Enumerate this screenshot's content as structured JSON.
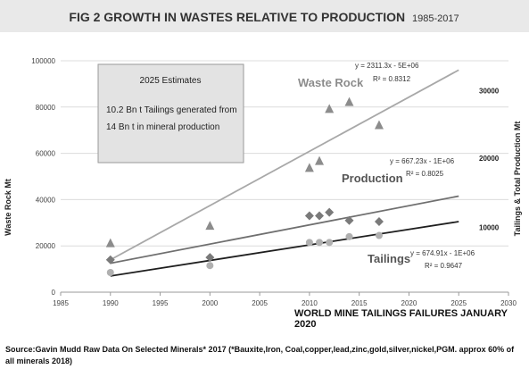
{
  "chart_data": {
    "type": "scatter",
    "title_main": "FIG 2 GROWTH IN WASTES RELATIVE TO PRODUCTION",
    "title_years": "1985-2017",
    "ylabel": "Waste Rock Mt",
    "ylabel_right": "Tailings & Total Production Mt",
    "xlim": [
      1985,
      2030
    ],
    "x_ticks": [
      1985,
      1990,
      1995,
      2000,
      2005,
      2010,
      2015,
      2020,
      2025,
      2030
    ],
    "ylim": [
      0,
      100000
    ],
    "y_ticks": [
      0,
      20000,
      40000,
      60000,
      80000,
      100000
    ],
    "right_ticks": [
      {
        "label": "30000",
        "at": 87000
      },
      {
        "label": "20000",
        "at": 58000
      },
      {
        "label": "10000",
        "at": 28000
      }
    ],
    "series": [
      {
        "name": "Waste Rock",
        "marker": "triangle",
        "color": "#8c8c8c",
        "x": [
          1990,
          2000,
          2010,
          2011,
          2012,
          2014,
          2017
        ],
        "y": [
          21000,
          28500,
          53500,
          56500,
          79000,
          82000,
          72000
        ],
        "equation": "y = 2311.3x - 5E+06",
        "r2": "R² = 0.8312",
        "trend": {
          "x": [
            1990,
            2025
          ],
          "y": [
            14000,
            96000
          ],
          "color": "#a8a8a8"
        }
      },
      {
        "name": "Production",
        "marker": "diamond",
        "color": "#7a7a7a",
        "x": [
          1990,
          2000,
          2010,
          2011,
          2012,
          2014,
          2017
        ],
        "y": [
          14000,
          15000,
          33000,
          33000,
          34500,
          31000,
          30500
        ],
        "equation": "y = 667.23x - 1E+06",
        "r2": "R² = 0.8025",
        "trend": {
          "x": [
            1990,
            2025
          ],
          "y": [
            12500,
            41500
          ],
          "color": "#6f6f6f"
        }
      },
      {
        "name": "Tailings",
        "marker": "circle",
        "color": "#b0b0b0",
        "x": [
          1990,
          2000,
          2010,
          2011,
          2012,
          2014,
          2017
        ],
        "y": [
          8500,
          11500,
          21500,
          21500,
          21500,
          24000,
          24500
        ],
        "equation": "y = 674.91x - 1E+06",
        "r2": "R² = 0.9647",
        "trend": {
          "x": [
            1990,
            2025
          ],
          "y": [
            7000,
            30500
          ],
          "color": "#1e1e1e"
        }
      }
    ],
    "annotation_box": {
      "heading": "2025 Estimates",
      "line1": "10.2 Bn t Tailings  generated from",
      "line2": "14 Bn t in mineral production"
    },
    "subtitle": "WORLD MINE TAILINGS FAILURES JANUARY 2020"
  },
  "source_note": "Source:Gavin Mudd Raw Data On Selected Minerals* 2017 (*Bauxite,Iron, Coal,copper,lead,zinc,gold,silver,nickel,PGM. approx 60% of all minerals 2018)"
}
